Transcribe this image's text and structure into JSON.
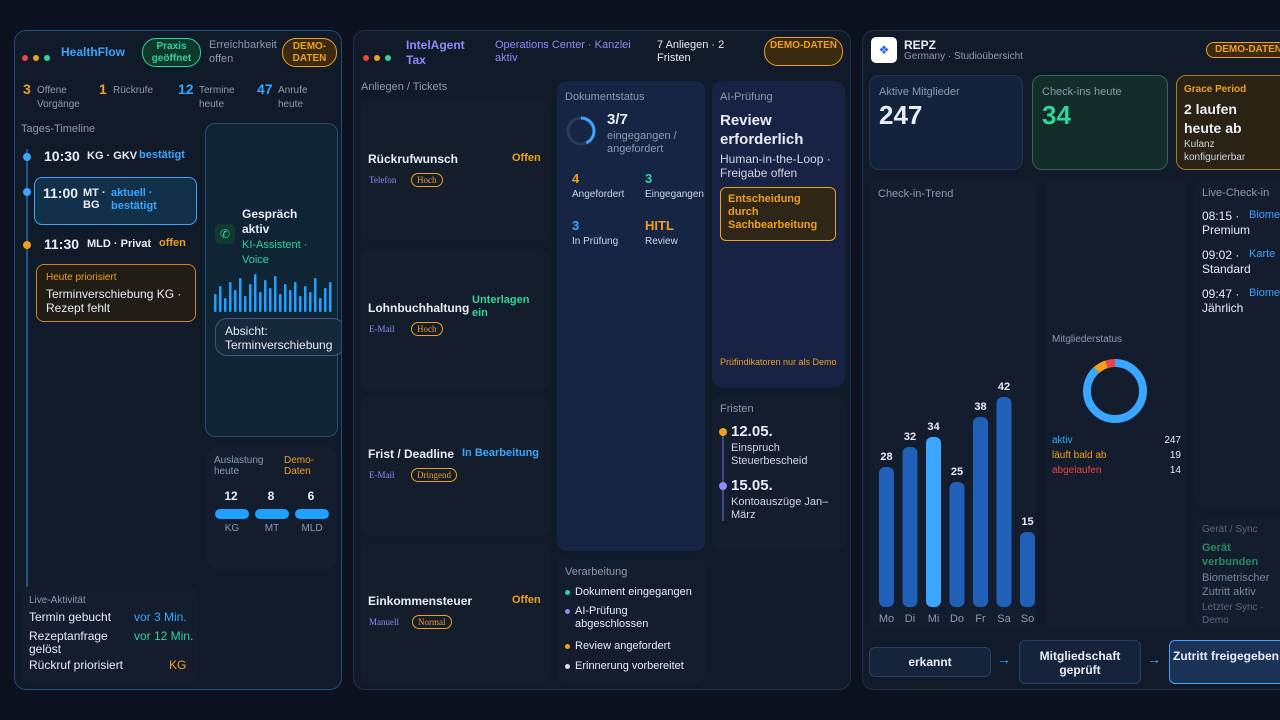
{
  "hf": {
    "brand": "HealthFlow",
    "status": "Praxis geöffnet",
    "reach_label": "Erreichbarkeit",
    "reach_value": "offen",
    "demo": "DEMO-DATEN",
    "stats": [
      {
        "num": "3",
        "label": "Offene Vorgänge",
        "color": "#f0a020"
      },
      {
        "num": "1",
        "label": "Rückrufe",
        "color": "#f0a020"
      },
      {
        "num": "12",
        "label": "Termine heute",
        "color": "#3aa6ff"
      },
      {
        "num": "47",
        "label": "Anrufe heute",
        "color": "#3aa6ff"
      }
    ],
    "timeline_title": "Tages-Timeline",
    "timeline": [
      {
        "time": "10:30",
        "who": "KG · GKV",
        "status": "bestätigt"
      },
      {
        "time": "11:00",
        "who": "MT · BG",
        "status": "aktuell · bestätigt"
      },
      {
        "time": "11:30",
        "who": "MLD · Privat",
        "status": "offen"
      }
    ],
    "priority_label": "Heute priorisiert",
    "priority_text": "Terminverschiebung KG · Rezept fehlt",
    "call_title": "Gespräch aktiv",
    "call_sub": "KI-Assistent · Voice",
    "intent": "Absicht: Terminverschiebung",
    "load_title": "Auslastung heute",
    "load_demo": "Demo-Daten",
    "load": [
      {
        "n": "12",
        "l": "KG",
        "frac": 1.0
      },
      {
        "n": "8",
        "l": "MT",
        "frac": 1.0
      },
      {
        "n": "6",
        "l": "MLD",
        "frac": 1.0
      }
    ],
    "live_title": "Live-Aktivität",
    "live": [
      {
        "t": "Termin gebucht",
        "v": "vor 3 Min.",
        "c": "#3aa6ff"
      },
      {
        "t": "Rezeptanfrage gelöst",
        "v": "vor 12 Min.",
        "c": "#34d399"
      },
      {
        "t": "Rückruf priorisiert",
        "v": "KG",
        "c": "#f0a020"
      }
    ]
  },
  "ia": {
    "brand": "IntelAgent Tax",
    "subtitle": "Operations Center · Kanzlei aktiv",
    "count": "7 Anliegen · 2 Fristen",
    "demo": "DEMO-DATEN",
    "tickets_title": "Anliegen / Tickets",
    "tickets": [
      {
        "title": "Rückrufwunsch",
        "status": "Offen",
        "sc": "#f0a020",
        "channel": "Telefon",
        "prio": "Hoch"
      },
      {
        "title": "Lohnbuchhaltung",
        "status": "Unterlagen ein",
        "sc": "#34d399",
        "channel": "E-Mail",
        "prio": "Hoch"
      },
      {
        "title": "Frist / Deadline",
        "status": "In Bearbeitung",
        "sc": "#3aa6ff",
        "channel": "E-Mail",
        "prio": "Dringend"
      },
      {
        "title": "Einkommensteuer",
        "status": "Offen",
        "sc": "#f0a020",
        "channel": "Manuell",
        "prio": "Normal"
      }
    ],
    "doc_title": "Dokumentstatus",
    "doc_count": "3/7",
    "doc_sub": "eingegangen / angefordert",
    "doc_progress": 0.43,
    "doc_grid": [
      {
        "n": "4",
        "l": "Angefordert",
        "c": "#f0a020"
      },
      {
        "n": "3",
        "l": "Eingegangen",
        "c": "#34d399"
      },
      {
        "n": "3",
        "l": "In Prüfung",
        "c": "#3aa6ff"
      },
      {
        "n": "HITL",
        "l": "Review",
        "c": "#f0a020"
      }
    ],
    "ai_title": "AI-Prüfung",
    "ai_head": "Review erforderlich",
    "ai_text": "Human-in-the-Loop · Freigabe offen",
    "ai_decision": "Entscheidung durch Sachbearbeitung",
    "ai_note": "Prüfindikatoren nur als Demo",
    "deadlines_title": "Fristen",
    "deadlines": [
      {
        "date": "12.05.",
        "text": "Einspruch Steuerbescheid"
      },
      {
        "date": "15.05.",
        "text": "Kontoauszüge Jan–März"
      }
    ],
    "proc_title": "Verarbeitung",
    "proc": [
      {
        "t": "Dokument eingegangen",
        "c": "#34d399"
      },
      {
        "t": "AI-Prüfung abgeschlossen",
        "c": "#8b8cf8"
      },
      {
        "t": "Review angefordert",
        "c": "#f0a020"
      },
      {
        "t": "Erinnerung vorbereitet",
        "c": "#d8dde6"
      }
    ]
  },
  "rp": {
    "brand": "REPZ",
    "sub": "Germany · Studioübersicht",
    "demo": "DEMO-DATEN",
    "k1_label": "Aktive Mitglieder",
    "k1_value": "247",
    "k2_label": "Check-ins heute",
    "k2_value": "34",
    "k3_label": "Grace Period",
    "k3_value": "2 laufen heute ab",
    "k3_sub": "Kulanz konfigurierbar",
    "trend_title": "Check-in-Trend",
    "status_title": "Mitgliederstatus",
    "status": [
      {
        "l": "aktiv",
        "v": "247",
        "c": "#3aa6ff"
      },
      {
        "l": "läuft bald ab",
        "v": "19",
        "c": "#f0a020"
      },
      {
        "l": "abgelaufen",
        "v": "14",
        "c": "#ef4444"
      }
    ],
    "live_title": "Live-Check-in",
    "live": [
      {
        "t": "08:15 ·",
        "tier": "Premium",
        "m": "Biometrie"
      },
      {
        "t": "09:02 ·",
        "tier": "Standard",
        "m": "Karte"
      },
      {
        "t": "09:47 ·",
        "tier": "Jährlich",
        "m": "Biometrie"
      }
    ],
    "device_title": "Gerät / Sync",
    "device_status": "Gerät verbunden",
    "device_text": "Biometrischer Zutritt aktiv",
    "device_sync": "Letzter Sync · Demo",
    "flow": [
      "erkannt",
      "Mitgliedschaft geprüft",
      "Zutritt freigegeben"
    ]
  },
  "chart_data": {
    "type": "bar",
    "title": "Check-in-Trend",
    "categories": [
      "Mo",
      "Di",
      "Mi",
      "Do",
      "Fr",
      "Sa",
      "So"
    ],
    "values": [
      28,
      32,
      34,
      25,
      38,
      42,
      15
    ],
    "highlight": "Mi",
    "ylim": [
      0,
      42
    ],
    "colors": {
      "bar": "#2060b8",
      "highlight": "#3aa6ff"
    }
  },
  "colors": {
    "accent": "#3aa6ff",
    "warn": "#f0a020",
    "ok": "#34d399",
    "danger": "#ef4444"
  }
}
